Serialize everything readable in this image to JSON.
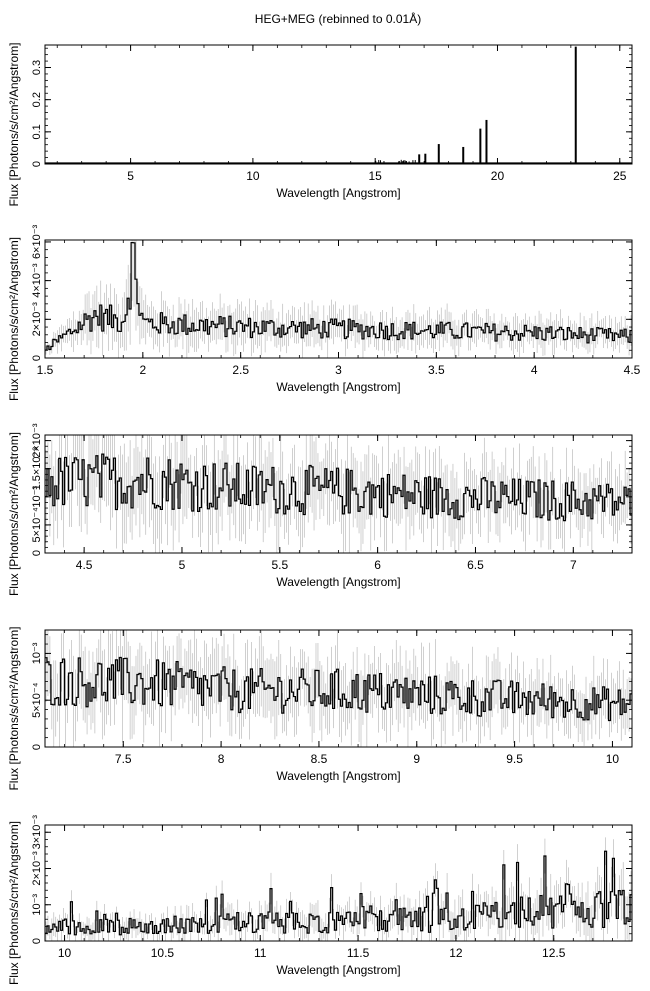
{
  "figure_title": "HEG+MEG (rebinned to 0.01Å)",
  "chart_data": [
    {
      "type": "line",
      "xlabel": "Wavelength [Angstrom]",
      "ylabel": "Flux [Photons/s/cm²/Angstrom]",
      "xlim": [
        1.5,
        25.5
      ],
      "ylim": [
        0,
        0.37
      ],
      "xticks": [
        5,
        10,
        15,
        20,
        25
      ],
      "xtick_labels": [
        "5",
        "10",
        "15",
        "20",
        "25"
      ],
      "yticks": [
        0,
        0.1,
        0.2,
        0.3
      ],
      "ytick_labels": [
        "0",
        "0.1",
        "0.2",
        "0.3"
      ],
      "baseline": 0.003,
      "lines": [
        {
          "x": 16.8,
          "y": 0.03
        },
        {
          "x": 17.05,
          "y": 0.032
        },
        {
          "x": 17.6,
          "y": 0.062
        },
        {
          "x": 18.6,
          "y": 0.053
        },
        {
          "x": 19.3,
          "y": 0.11
        },
        {
          "x": 19.55,
          "y": 0.137
        },
        {
          "x": 23.2,
          "y": 0.365
        }
      ]
    },
    {
      "type": "line",
      "xlabel": "Wavelength [Angstrom]",
      "ylabel": "Flux [Photons/s/cm²/Angstrom]",
      "xlim": [
        1.5,
        4.5
      ],
      "ylim": [
        0,
        0.0061
      ],
      "xticks": [
        1.5,
        2,
        2.5,
        3,
        3.5,
        4,
        4.5
      ],
      "xtick_labels": [
        "1.5",
        "2",
        "2.5",
        "3",
        "3.5",
        "4",
        "4.5"
      ],
      "yticks": [
        0,
        0.002,
        0.004,
        0.006
      ],
      "ytick_labels": [
        "0",
        "2×10⁻³",
        "4×10⁻³",
        "6×10⁻³"
      ],
      "x": [
        1.5,
        1.75,
        1.9,
        1.95,
        2.0,
        2.5,
        3.0,
        3.5,
        4.0,
        4.5
      ],
      "y": [
        0.0004,
        0.0022,
        0.0019,
        0.0047,
        0.0018,
        0.0016,
        0.0015,
        0.0014,
        0.0013,
        0.0011
      ]
    },
    {
      "type": "line",
      "xlabel": "Wavelength [Angstrom]",
      "ylabel": "Flux [Photons/s/cm²/Angstrom]",
      "xlim": [
        4.3,
        7.3
      ],
      "ylim": [
        0,
        0.0021
      ],
      "xticks": [
        4.5,
        5,
        5.5,
        6,
        6.5,
        7
      ],
      "xtick_labels": [
        "4.5",
        "5",
        "5.5",
        "6",
        "6.5",
        "7"
      ],
      "yticks": [
        0,
        0.0005,
        0.001,
        0.0015,
        0.002
      ],
      "ytick_labels": [
        "0",
        "5×10⁻⁴",
        "10⁻³",
        "1.5×10⁻³",
        "2×10⁻³"
      ],
      "x": [
        4.3,
        4.8,
        5.3,
        5.8,
        6.3,
        6.8,
        7.3
      ],
      "y": [
        0.00125,
        0.0013,
        0.00115,
        0.0011,
        0.001,
        0.00095,
        0.0009
      ]
    },
    {
      "type": "line",
      "xlabel": "Wavelength [Angstrom]",
      "ylabel": "Flux [Photons/s/cm²/Angstrom]",
      "xlim": [
        7.1,
        10.1
      ],
      "ylim": [
        0,
        0.00125
      ],
      "xticks": [
        7.5,
        8,
        8.5,
        9,
        9.5,
        10
      ],
      "xtick_labels": [
        "7.5",
        "8",
        "8.5",
        "9",
        "9.5",
        "10"
      ],
      "yticks": [
        0,
        0.0005,
        0.001
      ],
      "ytick_labels": [
        "0",
        "5×10⁻⁴",
        "10⁻³"
      ],
      "x": [
        7.1,
        7.6,
        8.1,
        8.6,
        9.1,
        9.6,
        10.1
      ],
      "y": [
        0.00072,
        0.00068,
        0.0006,
        0.0006,
        0.00055,
        0.0005,
        0.00045
      ]
    },
    {
      "type": "line",
      "xlabel": "Wavelength [Angstrom]",
      "ylabel": "Flux [Photons/s/cm²/Angstrom]",
      "xlim": [
        9.9,
        12.9
      ],
      "ylim": [
        0,
        0.0032
      ],
      "xticks": [
        10,
        10.5,
        11,
        11.5,
        12,
        12.5
      ],
      "xtick_labels": [
        "10",
        "10.5",
        "11",
        "11.5",
        "12",
        "12.5"
      ],
      "yticks": [
        0,
        0.001,
        0.002,
        0.003
      ],
      "ytick_labels": [
        "0",
        "10⁻³",
        "2×10⁻³",
        "3×10⁻³"
      ],
      "x": [
        9.9,
        10.4,
        10.9,
        11.4,
        11.9,
        12.4,
        12.9
      ],
      "y": [
        0.0004,
        0.0004,
        0.0005,
        0.0005,
        0.0006,
        0.0008,
        0.0009
      ]
    }
  ]
}
